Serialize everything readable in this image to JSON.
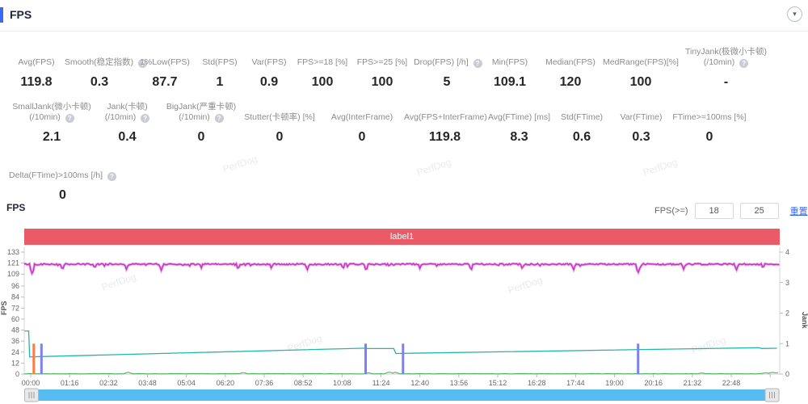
{
  "header": {
    "title": "FPS",
    "collapse_icon": "▾"
  },
  "watermark_text": "PerfDog",
  "metrics": {
    "row1": [
      {
        "label": "Avg(FPS)",
        "value": "119.8"
      },
      {
        "label": "Smooth(稳定指数)",
        "value": "0.3",
        "help": true
      },
      {
        "label": "1%Low(FPS)",
        "value": "87.7"
      },
      {
        "label": "Std(FPS)",
        "value": "1"
      },
      {
        "label": "Var(FPS)",
        "value": "0.9"
      },
      {
        "label": "FPS>=18 [%]",
        "value": "100"
      },
      {
        "label": "FPS>=25 [%]",
        "value": "100"
      },
      {
        "label": "Drop(FPS) [/h]",
        "value": "5",
        "help": true
      },
      {
        "label": "Min(FPS)",
        "value": "109.1"
      },
      {
        "label": "Median(FPS)",
        "value": "120"
      },
      {
        "label": "MedRange(FPS)[%]",
        "value": "100"
      },
      {
        "label": "TinyJank(极微小卡顿)",
        "label2": "(/10min)",
        "value": "-",
        "help": true
      }
    ],
    "row2": [
      {
        "label": "SmallJank(微小卡顿)",
        "label2": "(/10min)",
        "value": "2.1",
        "help": true
      },
      {
        "label": "Jank(卡顿)",
        "label2": "(/10min)",
        "value": "0.4",
        "help": true
      },
      {
        "label": "BigJank(严重卡顿)",
        "label2": "(/10min)",
        "value": "0",
        "help": true
      },
      {
        "label": "Stutter(卡顿率) [%]",
        "value": "0"
      },
      {
        "label": "Avg(InterFrame)",
        "value": "0"
      },
      {
        "label": "Avg(FPS+InterFrame)",
        "value": "119.8"
      },
      {
        "label": "Avg(FTime) [ms]",
        "value": "8.3"
      },
      {
        "label": "Std(FTime)",
        "value": "0.6"
      },
      {
        "label": "Var(FTime)",
        "value": "0.3"
      },
      {
        "label": "FTime>=100ms [%]",
        "value": "0"
      }
    ],
    "row3": [
      {
        "label": "Delta(FTime)>100ms [/h]",
        "value": "0",
        "help": true
      }
    ]
  },
  "chart_section": {
    "title": "FPS",
    "threshold_label": "FPS(>=)",
    "threshold_low": "18",
    "threshold_high": "25",
    "reset_link": "重置"
  },
  "chart_data": {
    "type": "line",
    "band_label": "label1",
    "band_color": "#eb5a67",
    "x_axis": {
      "tick_labels": [
        "00:00",
        "01:16",
        "02:32",
        "03:48",
        "05:04",
        "06:20",
        "07:36",
        "08:52",
        "10:08",
        "11:24",
        "12:40",
        "13:56",
        "15:12",
        "16:28",
        "17:44",
        "19:00",
        "20:16",
        "21:32",
        "22:48"
      ],
      "seconds_per_tick": 76
    },
    "y_axis_left": {
      "label": "FPS",
      "ticks": [
        133,
        121,
        109,
        96,
        84,
        72,
        60,
        48,
        36,
        24,
        12,
        0
      ],
      "max": 133
    },
    "y_axis_right": {
      "label": "Jank",
      "ticks": [
        4,
        3,
        2,
        1,
        0
      ],
      "max": 4
    },
    "series": [
      {
        "name": "FPS",
        "type": "noisy_line",
        "color": "#c32fc0",
        "baseline": 119.8,
        "jitter": 1.5,
        "dips": [
          [
            3,
            109.1
          ],
          [
            62,
            113.5
          ],
          [
            125,
            115
          ],
          [
            187,
            114
          ],
          [
            255,
            113
          ],
          [
            333,
            115.5
          ],
          [
            405,
            114
          ],
          [
            470,
            115
          ],
          [
            540,
            113.5
          ],
          [
            610,
            114.5
          ],
          [
            655,
            112.5
          ],
          [
            760,
            115
          ],
          [
            860,
            113
          ],
          [
            960,
            114.5
          ],
          [
            1060,
            113.5
          ],
          [
            1186,
            110.2
          ],
          [
            1275,
            114
          ],
          [
            1378,
            113.2
          ],
          [
            1430,
            115
          ]
        ]
      },
      {
        "name": "trend",
        "type": "line",
        "color": "#23b6ab",
        "points": [
          [
            -12,
            47
          ],
          [
            -4,
            47
          ],
          [
            -2,
            18.8
          ],
          [
            654,
            28.3
          ],
          [
            657,
            27.8
          ],
          [
            709,
            27.8
          ],
          [
            713,
            22.5
          ],
          [
            1422,
            28.8
          ],
          [
            1427,
            27.9
          ],
          [
            1457,
            28.2
          ]
        ]
      },
      {
        "name": "near-zero",
        "type": "noisy_line",
        "color": "#3fae52",
        "baseline": 0.35,
        "jitter": 0.5,
        "spikes": [
          [
            190,
            2.2
          ],
          [
            415,
            1.9
          ],
          [
            660,
            1.6
          ],
          [
            700,
            2.6
          ],
          [
            712,
            2.2
          ],
          [
            1310,
            1.4
          ],
          [
            1435,
            1.8
          ],
          [
            1448,
            2.3
          ],
          [
            1458,
            2.0
          ]
        ]
      }
    ],
    "jank_events": [
      {
        "t": 6,
        "value": 1,
        "color": "#ff7a45"
      },
      {
        "t": 21,
        "value": 1,
        "color": "#7b83eb"
      },
      {
        "t": 654,
        "value": 1,
        "color": "#7b83eb"
      },
      {
        "t": 727,
        "value": 1,
        "color": "#7b83eb"
      },
      {
        "t": 1186,
        "value": 1,
        "color": "#7b83eb"
      }
    ],
    "scrollbar_color": "#55bdf2"
  }
}
